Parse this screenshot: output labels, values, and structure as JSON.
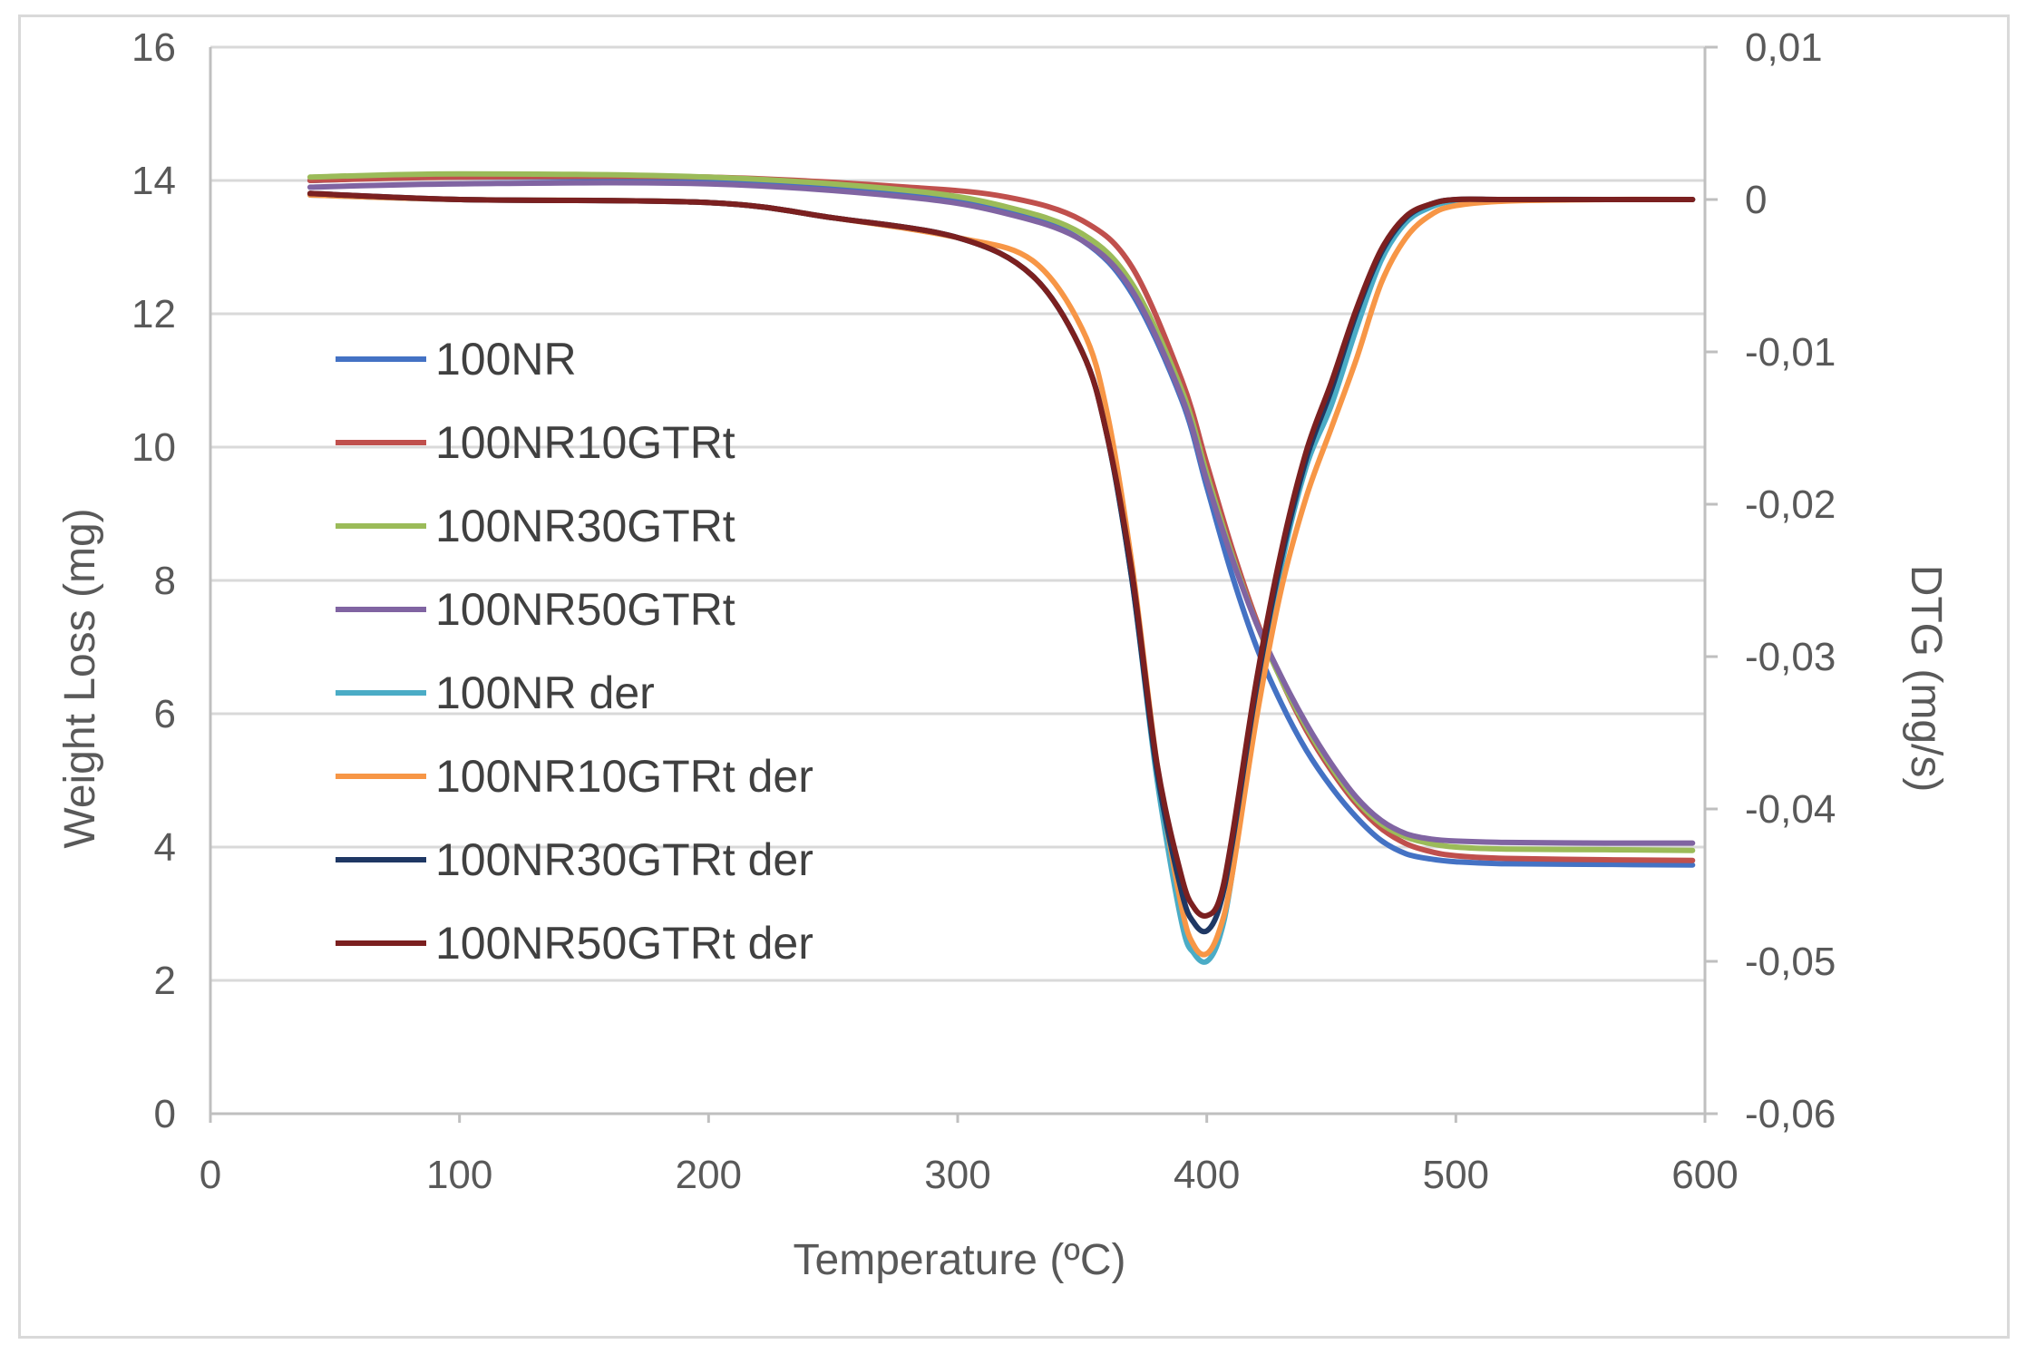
{
  "chart_data": {
    "type": "line",
    "title": "",
    "xlabel": "Temperature (ºC)",
    "ylabel": "Weight Loss (mg)",
    "y2label": "DTG (mg/s)",
    "xlim": [
      0,
      600
    ],
    "ylim": [
      0,
      16
    ],
    "y2lim": [
      -0.06,
      0.01
    ],
    "x_ticks": [
      "0",
      "100",
      "200",
      "300",
      "400",
      "500",
      "600"
    ],
    "y_ticks": [
      "0",
      "2",
      "4",
      "6",
      "8",
      "10",
      "12",
      "14",
      "16"
    ],
    "y2_ticks": [
      "-0,06",
      "-0,05",
      "-0,04",
      "-0,03",
      "-0,02",
      "-0,01",
      "0",
      "0,01"
    ],
    "grid": true,
    "legend_position": "left",
    "series": [
      {
        "name": "100NR",
        "axis": "left",
        "color": "#4472C4",
        "x": [
          40,
          100,
          200,
          280,
          320,
          350,
          370,
          390,
          400,
          410,
          420,
          430,
          440,
          450,
          460,
          470,
          480,
          490,
          500,
          520,
          560,
          595
        ],
        "y": [
          14.0,
          14.05,
          14.0,
          13.8,
          13.55,
          13.1,
          12.3,
          10.7,
          9.4,
          8.1,
          7.0,
          6.15,
          5.45,
          4.9,
          4.45,
          4.1,
          3.9,
          3.82,
          3.78,
          3.75,
          3.74,
          3.73
        ]
      },
      {
        "name": "100NR10GTRt",
        "axis": "left",
        "color": "#C0504D",
        "x": [
          40,
          100,
          200,
          280,
          320,
          350,
          370,
          390,
          400,
          410,
          420,
          430,
          440,
          450,
          460,
          470,
          480,
          490,
          500,
          520,
          560,
          595
        ],
        "y": [
          14.0,
          14.05,
          14.05,
          13.9,
          13.75,
          13.4,
          12.7,
          11.0,
          9.75,
          8.5,
          7.4,
          6.5,
          5.75,
          5.15,
          4.65,
          4.28,
          4.05,
          3.93,
          3.87,
          3.83,
          3.81,
          3.8
        ]
      },
      {
        "name": "100NR30GTRt",
        "axis": "left",
        "color": "#9BBB59",
        "x": [
          40,
          100,
          200,
          280,
          320,
          350,
          370,
          390,
          400,
          410,
          420,
          430,
          440,
          450,
          460,
          470,
          480,
          490,
          500,
          520,
          560,
          595
        ],
        "y": [
          14.05,
          14.1,
          14.05,
          13.85,
          13.6,
          13.2,
          12.45,
          10.85,
          9.6,
          8.4,
          7.35,
          6.5,
          5.8,
          5.2,
          4.7,
          4.35,
          4.15,
          4.05,
          4.0,
          3.97,
          3.96,
          3.95
        ]
      },
      {
        "name": "100NR50GTRt",
        "axis": "left",
        "color": "#8064A2",
        "x": [
          40,
          100,
          200,
          280,
          320,
          350,
          370,
          390,
          400,
          410,
          420,
          430,
          440,
          450,
          460,
          470,
          480,
          490,
          500,
          520,
          560,
          595
        ],
        "y": [
          13.9,
          13.95,
          13.95,
          13.75,
          13.5,
          13.1,
          12.35,
          10.75,
          9.5,
          8.35,
          7.35,
          6.55,
          5.85,
          5.25,
          4.75,
          4.4,
          4.2,
          4.12,
          4.09,
          4.07,
          4.06,
          4.06
        ]
      },
      {
        "name": "100NR der",
        "axis": "right",
        "color": "#4BACC6",
        "x": [
          40,
          100,
          200,
          250,
          300,
          330,
          350,
          360,
          370,
          380,
          390,
          395,
          400,
          405,
          410,
          420,
          430,
          440,
          450,
          460,
          470,
          480,
          490,
          500,
          520,
          560,
          595
        ],
        "y": [
          0.0003,
          0.0,
          -0.0002,
          -0.0012,
          -0.0025,
          -0.005,
          -0.01,
          -0.0155,
          -0.025,
          -0.038,
          -0.0475,
          -0.0495,
          -0.05,
          -0.0485,
          -0.0445,
          -0.033,
          -0.024,
          -0.0175,
          -0.0135,
          -0.0085,
          -0.004,
          -0.0015,
          -0.0005,
          -0.0001,
          0.0,
          0.0,
          0.0
        ]
      },
      {
        "name": "100NR10GTRt der",
        "axis": "right",
        "color": "#F79646",
        "x": [
          40,
          100,
          200,
          250,
          300,
          330,
          350,
          360,
          370,
          380,
          390,
          395,
          400,
          405,
          410,
          420,
          430,
          440,
          450,
          460,
          470,
          480,
          490,
          500,
          520,
          560,
          595
        ],
        "y": [
          0.0003,
          0.0,
          -0.0002,
          -0.0012,
          -0.0025,
          -0.004,
          -0.0085,
          -0.014,
          -0.024,
          -0.037,
          -0.0465,
          -0.049,
          -0.0495,
          -0.048,
          -0.0445,
          -0.034,
          -0.0255,
          -0.0195,
          -0.015,
          -0.0105,
          -0.0055,
          -0.0025,
          -0.001,
          -0.0004,
          -0.0001,
          0.0,
          0.0
        ]
      },
      {
        "name": "100NR30GTRt der",
        "axis": "right",
        "color": "#1F3864",
        "x": [
          40,
          100,
          200,
          250,
          300,
          330,
          350,
          360,
          370,
          380,
          390,
          395,
          400,
          405,
          410,
          420,
          430,
          440,
          450,
          460,
          470,
          480,
          490,
          500,
          520,
          560,
          595
        ],
        "y": [
          0.0004,
          0.0,
          -0.0002,
          -0.0012,
          -0.0025,
          -0.005,
          -0.01,
          -0.0155,
          -0.025,
          -0.0375,
          -0.0455,
          -0.0475,
          -0.048,
          -0.0465,
          -0.0425,
          -0.032,
          -0.0235,
          -0.017,
          -0.0125,
          -0.0075,
          -0.0035,
          -0.0012,
          -0.0003,
          0.0,
          0.0,
          0.0,
          0.0
        ]
      },
      {
        "name": "100NR50GTRt der",
        "axis": "right",
        "color": "#7B2020",
        "x": [
          40,
          100,
          200,
          250,
          300,
          330,
          350,
          360,
          370,
          380,
          390,
          395,
          400,
          405,
          410,
          420,
          430,
          440,
          450,
          460,
          470,
          480,
          490,
          500,
          520,
          560,
          595
        ],
        "y": [
          0.0004,
          0.0,
          -0.0002,
          -0.0012,
          -0.0025,
          -0.005,
          -0.01,
          -0.0155,
          -0.0245,
          -0.037,
          -0.0445,
          -0.0465,
          -0.047,
          -0.046,
          -0.042,
          -0.0315,
          -0.023,
          -0.0165,
          -0.012,
          -0.0072,
          -0.0033,
          -0.0011,
          -0.0003,
          0.0,
          0.0,
          0.0,
          0.0
        ]
      }
    ]
  }
}
